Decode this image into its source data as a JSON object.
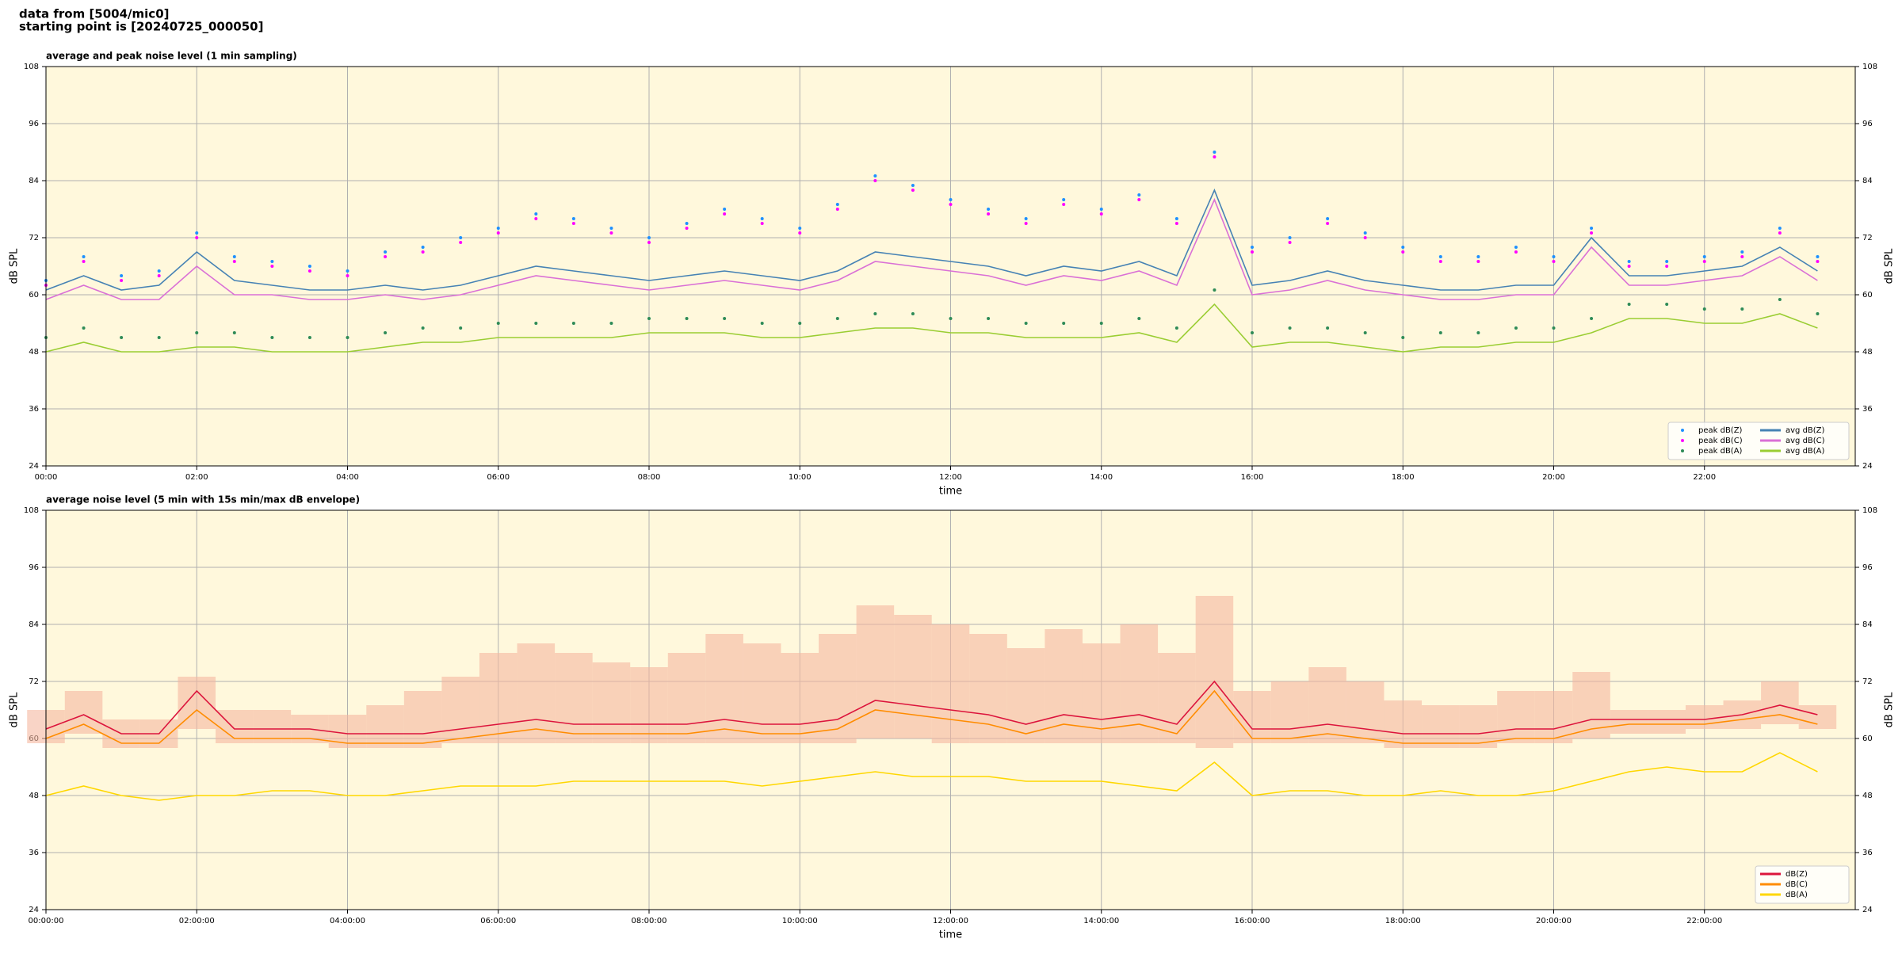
{
  "header": {
    "line1": "data from [5004/mic0]",
    "line2": "starting point is [20240725_000050]"
  },
  "chart_data": [
    {
      "type": "line",
      "title": "average and peak noise level (1 min sampling)",
      "xlabel": "time",
      "ylabel": "dB SPL",
      "x": [
        0,
        30,
        60,
        90,
        120,
        150,
        180,
        210,
        240,
        270,
        300,
        330,
        360,
        390,
        420,
        450,
        480,
        510,
        540,
        570,
        600,
        630,
        660,
        690,
        720,
        750,
        780,
        810,
        840,
        870,
        900,
        930,
        960,
        990,
        1020,
        1050,
        1080,
        1110,
        1140,
        1170,
        1200,
        1230,
        1260,
        1290,
        1320,
        1350,
        1380,
        1410
      ],
      "xlim": [
        0,
        1440
      ],
      "xticks": [
        {
          "value": 0,
          "label": "00:00"
        },
        {
          "value": 120,
          "label": "02:00"
        },
        {
          "value": 240,
          "label": "04:00"
        },
        {
          "value": 360,
          "label": "06:00"
        },
        {
          "value": 480,
          "label": "08:00"
        },
        {
          "value": 600,
          "label": "10:00"
        },
        {
          "value": 720,
          "label": "12:00"
        },
        {
          "value": 840,
          "label": "14:00"
        },
        {
          "value": 960,
          "label": "16:00"
        },
        {
          "value": 1080,
          "label": "18:00"
        },
        {
          "value": 1200,
          "label": "20:00"
        },
        {
          "value": 1320,
          "label": "22:00"
        }
      ],
      "ylim": [
        24,
        108
      ],
      "yticks": [
        24,
        36,
        48,
        60,
        72,
        84,
        96,
        108
      ],
      "grid": true,
      "legend": "lower right",
      "legend_columns": 2,
      "series": [
        {
          "name": "peak dB(Z)",
          "color": "#1e90ff",
          "style": "scatter",
          "values": [
            63,
            68,
            64,
            65,
            73,
            68,
            67,
            66,
            65,
            69,
            70,
            72,
            74,
            77,
            76,
            74,
            72,
            75,
            78,
            76,
            74,
            79,
            85,
            83,
            80,
            78,
            76,
            80,
            78,
            81,
            76,
            90,
            70,
            72,
            76,
            73,
            70,
            68,
            68,
            70,
            68,
            74,
            67,
            67,
            68,
            69,
            74,
            68
          ]
        },
        {
          "name": "peak dB(C)",
          "color": "#ff00ff",
          "style": "scatter",
          "values": [
            62,
            67,
            63,
            64,
            72,
            67,
            66,
            65,
            64,
            68,
            69,
            71,
            73,
            76,
            75,
            73,
            71,
            74,
            77,
            75,
            73,
            78,
            84,
            82,
            79,
            77,
            75,
            79,
            77,
            80,
            75,
            89,
            69,
            71,
            75,
            72,
            69,
            67,
            67,
            69,
            67,
            73,
            66,
            66,
            67,
            68,
            73,
            67
          ]
        },
        {
          "name": "peak dB(A)",
          "color": "#2e8b57",
          "style": "scatter",
          "values": [
            51,
            53,
            51,
            51,
            52,
            52,
            51,
            51,
            51,
            52,
            53,
            53,
            54,
            54,
            54,
            54,
            55,
            55,
            55,
            54,
            54,
            55,
            56,
            56,
            55,
            55,
            54,
            54,
            54,
            55,
            53,
            61,
            52,
            53,
            53,
            52,
            51,
            52,
            52,
            53,
            53,
            55,
            58,
            58,
            57,
            57,
            59,
            56
          ]
        },
        {
          "name": "avg dB(Z)",
          "color": "#4682b4",
          "style": "line",
          "values": [
            61,
            64,
            61,
            62,
            69,
            63,
            62,
            61,
            61,
            62,
            61,
            62,
            64,
            66,
            65,
            64,
            63,
            64,
            65,
            64,
            63,
            65,
            69,
            68,
            67,
            66,
            64,
            66,
            65,
            67,
            64,
            82,
            62,
            63,
            65,
            63,
            62,
            61,
            61,
            62,
            62,
            72,
            64,
            64,
            65,
            66,
            70,
            65
          ]
        },
        {
          "name": "avg dB(C)",
          "color": "#da70d6",
          "style": "line",
          "values": [
            59,
            62,
            59,
            59,
            66,
            60,
            60,
            59,
            59,
            60,
            59,
            60,
            62,
            64,
            63,
            62,
            61,
            62,
            63,
            62,
            61,
            63,
            67,
            66,
            65,
            64,
            62,
            64,
            63,
            65,
            62,
            80,
            60,
            61,
            63,
            61,
            60,
            59,
            59,
            60,
            60,
            70,
            62,
            62,
            63,
            64,
            68,
            63
          ]
        },
        {
          "name": "avg dB(A)",
          "color": "#9acd32",
          "style": "line",
          "values": [
            48,
            50,
            48,
            48,
            49,
            49,
            48,
            48,
            48,
            49,
            50,
            50,
            51,
            51,
            51,
            51,
            52,
            52,
            52,
            51,
            51,
            52,
            53,
            53,
            52,
            52,
            51,
            51,
            51,
            52,
            50,
            58,
            49,
            50,
            50,
            49,
            48,
            49,
            49,
            50,
            50,
            52,
            55,
            55,
            54,
            54,
            56,
            53
          ]
        }
      ]
    },
    {
      "type": "line",
      "title": "average noise level (5 min with 15s min/max dB envelope)",
      "xlabel": "time",
      "ylabel": "dB SPL",
      "x": [
        0,
        30,
        60,
        90,
        120,
        150,
        180,
        210,
        240,
        270,
        300,
        330,
        360,
        390,
        420,
        450,
        480,
        510,
        540,
        570,
        600,
        630,
        660,
        690,
        720,
        750,
        780,
        810,
        840,
        870,
        900,
        930,
        960,
        990,
        1020,
        1050,
        1080,
        1110,
        1140,
        1170,
        1200,
        1230,
        1260,
        1290,
        1320,
        1350,
        1380,
        1410
      ],
      "xlim": [
        0,
        1440
      ],
      "xticks": [
        {
          "value": 0,
          "label": "00:00:00"
        },
        {
          "value": 120,
          "label": "02:00:00"
        },
        {
          "value": 240,
          "label": "04:00:00"
        },
        {
          "value": 360,
          "label": "06:00:00"
        },
        {
          "value": 480,
          "label": "08:00:00"
        },
        {
          "value": 600,
          "label": "10:00:00"
        },
        {
          "value": 720,
          "label": "12:00:00"
        },
        {
          "value": 840,
          "label": "14:00:00"
        },
        {
          "value": 960,
          "label": "16:00:00"
        },
        {
          "value": 1080,
          "label": "18:00:00"
        },
        {
          "value": 1200,
          "label": "20:00:00"
        },
        {
          "value": 1320,
          "label": "22:00:00"
        }
      ],
      "ylim": [
        24,
        108
      ],
      "yticks": [
        24,
        36,
        48,
        60,
        72,
        84,
        96,
        108
      ],
      "grid": true,
      "legend": "lower right",
      "legend_columns": 1,
      "envelope": {
        "color": "#f5b8a0",
        "max": [
          66,
          70,
          64,
          64,
          73,
          66,
          66,
          65,
          65,
          67,
          70,
          73,
          78,
          80,
          78,
          76,
          75,
          78,
          82,
          80,
          78,
          82,
          88,
          86,
          84,
          82,
          79,
          83,
          80,
          84,
          78,
          90,
          70,
          72,
          75,
          72,
          68,
          67,
          67,
          70,
          70,
          74,
          66,
          66,
          67,
          68,
          72,
          67
        ],
        "min": [
          59,
          61,
          58,
          58,
          62,
          59,
          59,
          59,
          58,
          58,
          58,
          59,
          59,
          59,
          59,
          59,
          59,
          59,
          59,
          59,
          59,
          59,
          60,
          60,
          59,
          59,
          59,
          59,
          59,
          59,
          59,
          58,
          59,
          59,
          59,
          59,
          58,
          58,
          58,
          59,
          59,
          60,
          61,
          61,
          62,
          62,
          63,
          62
        ]
      },
      "series": [
        {
          "name": "dB(Z)",
          "color": "#dc143c",
          "style": "line",
          "values": [
            62,
            65,
            61,
            61,
            70,
            62,
            62,
            62,
            61,
            61,
            61,
            62,
            63,
            64,
            63,
            63,
            63,
            63,
            64,
            63,
            63,
            64,
            68,
            67,
            66,
            65,
            63,
            65,
            64,
            65,
            63,
            72,
            62,
            62,
            63,
            62,
            61,
            61,
            61,
            62,
            62,
            64,
            64,
            64,
            64,
            65,
            67,
            65
          ]
        },
        {
          "name": "dB(C)",
          "color": "#ff8c00",
          "style": "line",
          "values": [
            60,
            63,
            59,
            59,
            66,
            60,
            60,
            60,
            59,
            59,
            59,
            60,
            61,
            62,
            61,
            61,
            61,
            61,
            62,
            61,
            61,
            62,
            66,
            65,
            64,
            63,
            61,
            63,
            62,
            63,
            61,
            70,
            60,
            60,
            61,
            60,
            59,
            59,
            59,
            60,
            60,
            62,
            63,
            63,
            63,
            64,
            65,
            63
          ]
        },
        {
          "name": "dB(A)",
          "color": "#ffd700",
          "style": "line",
          "values": [
            48,
            50,
            48,
            47,
            48,
            48,
            49,
            49,
            48,
            48,
            49,
            50,
            50,
            50,
            51,
            51,
            51,
            51,
            51,
            50,
            51,
            52,
            53,
            52,
            52,
            52,
            51,
            51,
            51,
            50,
            49,
            55,
            48,
            49,
            49,
            48,
            48,
            49,
            48,
            48,
            49,
            51,
            53,
            54,
            53,
            53,
            57,
            53
          ]
        }
      ]
    }
  ]
}
